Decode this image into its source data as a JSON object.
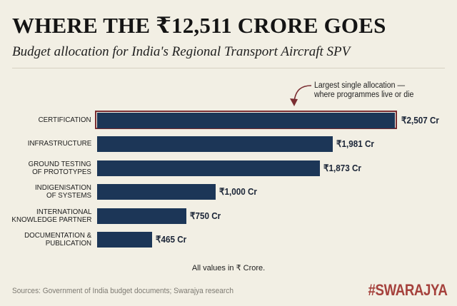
{
  "header": {
    "title": "WHERE THE ₹12,511 CRORE GOES",
    "subtitle": "Budget allocation for India's Regional Transport Aircraft SPV"
  },
  "annotation": {
    "text": "Largest single allocation —\nwhere programmes live or die",
    "line1": "Largest single allocation —",
    "line2": "where programmes live or die",
    "highlight_color": "#7a2d31"
  },
  "bars": [
    {
      "label": "CERTIFICATION",
      "value": 2507,
      "value_label": "₹2,507 Cr",
      "highlight": true
    },
    {
      "label": "INFRASTRUCTURE",
      "value": 1981,
      "value_label": "₹1,981 Cr",
      "highlight": false
    },
    {
      "label": "GROUND TESTING\nOF PROTOTYPES",
      "value": 1873,
      "value_label": "₹1,873 Cr",
      "highlight": false
    },
    {
      "label": "INDIGENISATION\nOF SYSTEMS",
      "value": 1000,
      "value_label": "₹1,000 Cr",
      "highlight": false
    },
    {
      "label": "INTERNATIONAL\nKNOWLEDGE PARTNER",
      "value": 750,
      "value_label": "₹750 Cr",
      "highlight": false
    },
    {
      "label": "DOCUMENTATION &\nPUBLICATION",
      "value": 465,
      "value_label": "₹465 Cr",
      "highlight": false
    }
  ],
  "footer": {
    "note": "All values in ₹ Crore.",
    "sources": "Sources: Government of India budget documents; Swarajya research",
    "brand": "#SWARAJYA"
  },
  "colors": {
    "background": "#f2efe4",
    "bar": "#1c3657",
    "highlight": "#7a2d31",
    "brand": "#a5413c"
  },
  "chart_data": {
    "type": "bar",
    "orientation": "horizontal",
    "title": "WHERE THE ₹12,511 CRORE GOES",
    "subtitle": "Budget allocation for India's Regional Transport Aircraft SPV",
    "categories": [
      "CERTIFICATION",
      "INFRASTRUCTURE",
      "GROUND TESTING OF PROTOTYPES",
      "INDIGENISATION OF SYSTEMS",
      "INTERNATIONAL KNOWLEDGE PARTNER",
      "DOCUMENTATION & PUBLICATION"
    ],
    "values": [
      2507,
      1981,
      1873,
      1000,
      750,
      465
    ],
    "value_labels": [
      "₹2,507 Cr",
      "₹1,981 Cr",
      "₹1,873 Cr",
      "₹1,000 Cr",
      "₹750 Cr",
      "₹465 Cr"
    ],
    "unit": "₹ Crore",
    "xlabel": "",
    "ylabel": "",
    "grid": false,
    "legend": null,
    "annotations": [
      {
        "target": "CERTIFICATION",
        "text": "Largest single allocation — where programmes live or die"
      }
    ],
    "note": "All values in ₹ Crore.",
    "source": "Sources: Government of India budget documents; Swarajya research"
  }
}
